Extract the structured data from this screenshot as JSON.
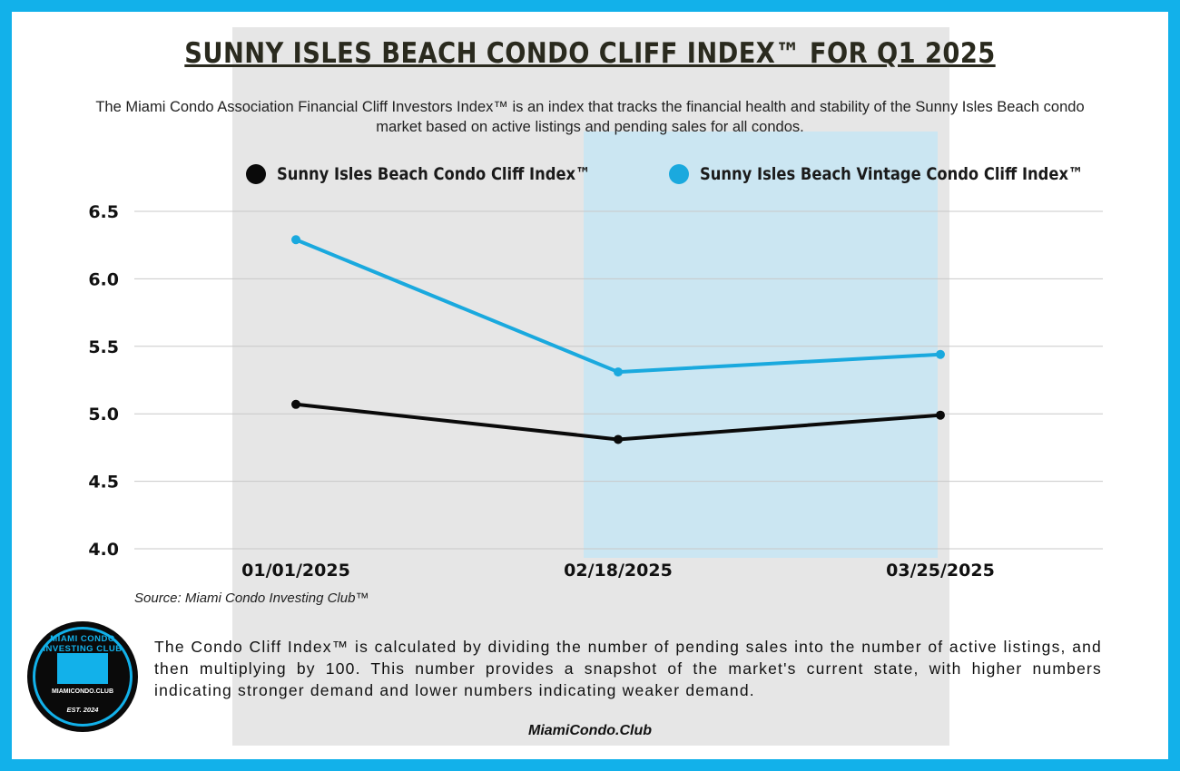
{
  "title": "SUNNY ISLES BEACH CONDO CLIFF INDEX™ FOR Q1 2025",
  "subtitle": "The Miami Condo Association Financial Cliff Investors Index™ is an index that tracks the financial health and stability of the Sunny Isles Beach condo market based on active listings and pending sales for all condos.",
  "colors": {
    "frame": "#12b1ea",
    "series1": "#0a0a0a",
    "series2": "#1aa9de"
  },
  "chart_data": {
    "type": "line",
    "categories": [
      "01/01/2025",
      "02/18/2025",
      "03/25/2025"
    ],
    "series": [
      {
        "name": "Sunny Isles Beach Condo Cliff Index™",
        "values": [
          5.07,
          4.81,
          4.99
        ],
        "color": "#0a0a0a"
      },
      {
        "name": "Sunny Isles Beach Vintage Condo Cliff Index™",
        "values": [
          6.29,
          5.31,
          5.44
        ],
        "color": "#1aa9de"
      }
    ],
    "yticks": [
      "4.0",
      "4.5",
      "5.0",
      "5.5",
      "6.0",
      "6.5"
    ],
    "ylim": [
      4.0,
      6.5
    ],
    "grid": true,
    "legend": "top"
  },
  "source": "Source: Miami Condo Investing Club™",
  "logo": {
    "top": "MIAMI CONDO INVESTING CLUB",
    "site": "MIAMICONDO.CLUB",
    "est": "EST. 2024"
  },
  "note": "The Condo Cliff Index™ is calculated by dividing the number of pending sales into the number of active listings, and then multiplying by 100. This number provides a snapshot of the market's current state, with higher numbers indicating stronger demand and lower numbers indicating weaker demand.",
  "footer": "MiamiCondo.Club"
}
